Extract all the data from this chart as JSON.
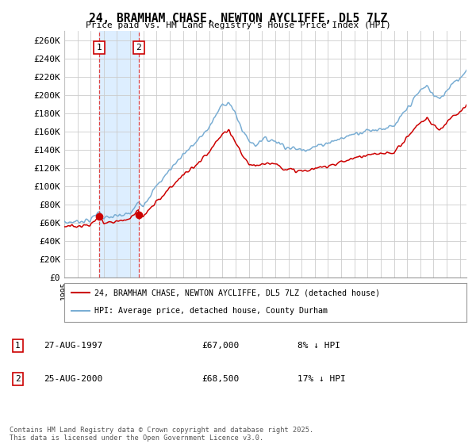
{
  "title": "24, BRAMHAM CHASE, NEWTON AYCLIFFE, DL5 7LZ",
  "subtitle": "Price paid vs. HM Land Registry's House Price Index (HPI)",
  "ylim": [
    0,
    270000
  ],
  "xlim_start": 1995.0,
  "xlim_end": 2025.5,
  "purchase1_date": 1997.65,
  "purchase1_price": 67000,
  "purchase2_date": 2000.65,
  "purchase2_price": 68500,
  "legend_line1": "24, BRAMHAM CHASE, NEWTON AYCLIFFE, DL5 7LZ (detached house)",
  "legend_line2": "HPI: Average price, detached house, County Durham",
  "table_row1": [
    "1",
    "27-AUG-1997",
    "£67,000",
    "8% ↓ HPI"
  ],
  "table_row2": [
    "2",
    "25-AUG-2000",
    "£68,500",
    "17% ↓ HPI"
  ],
  "footer": "Contains HM Land Registry data © Crown copyright and database right 2025.\nThis data is licensed under the Open Government Licence v3.0.",
  "line_color_red": "#cc0000",
  "line_color_blue": "#7aaed4",
  "shade_color": "#ddeeff",
  "vline_color": "#dd4444",
  "bg_color": "#ffffff",
  "grid_color": "#cccccc",
  "box_color": "#cc0000",
  "tick_vals": [
    0,
    20000,
    40000,
    60000,
    80000,
    100000,
    120000,
    140000,
    160000,
    180000,
    200000,
    220000,
    240000,
    260000
  ],
  "tick_labels": [
    "£0",
    "£20K",
    "£40K",
    "£60K",
    "£80K",
    "£100K",
    "£120K",
    "£140K",
    "£160K",
    "£180K",
    "£200K",
    "£220K",
    "£240K",
    "£260K"
  ]
}
